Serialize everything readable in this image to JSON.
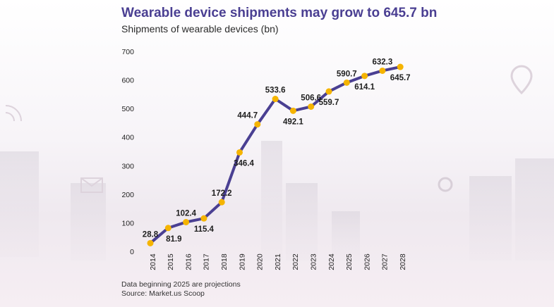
{
  "header": {
    "title": "Wearable device shipments may grow to 645.7 bn",
    "subtitle": "Shipments of wearable devices (bn)"
  },
  "footer": {
    "note": "Data beginning 2025 are projections",
    "source": "Source: Market.us Scoop"
  },
  "colors": {
    "line": "#4a3f92",
    "marker": "#f5b400",
    "title": "#4a3f92"
  },
  "chart_data": {
    "type": "line",
    "title": "Wearable device shipments may grow to 645.7 bn",
    "subtitle": "Shipments of wearable devices (bn)",
    "xlabel": "",
    "ylabel": "",
    "categories": [
      "2014",
      "2015",
      "2016",
      "2017",
      "2018",
      "2019",
      "2020",
      "2021",
      "2022",
      "2023",
      "2024",
      "2025",
      "2026",
      "2027",
      "2028"
    ],
    "series": [
      {
        "values": [
          28.8,
          81.9,
          102.4,
          115.4,
          172.2,
          346.4,
          444.7,
          533.6,
          492.1,
          506.6,
          559.7,
          590.7,
          614.1,
          632.3,
          645.7
        ]
      }
    ],
    "data_labels": [
      "28.8",
      "81.9",
      "102.4",
      "115.4",
      "172.2",
      "346.4",
      "444.7",
      "533.6",
      "492.1",
      "506.6",
      "559.7",
      "590.7",
      "614.1",
      "632.3",
      "645.7"
    ],
    "yticks": [
      "0",
      "100",
      "200",
      "300",
      "400",
      "500",
      "600",
      "700"
    ],
    "ylim": [
      0,
      700
    ],
    "grid": false,
    "legend": "none"
  }
}
